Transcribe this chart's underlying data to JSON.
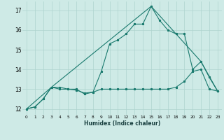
{
  "xlabel": "Humidex (Indice chaleur)",
  "ylabel": "",
  "xlim": [
    -0.5,
    23.5
  ],
  "ylim": [
    11.7,
    17.45
  ],
  "yticks": [
    12,
    13,
    14,
    15,
    16,
    17
  ],
  "xticks": [
    0,
    1,
    2,
    3,
    4,
    5,
    6,
    7,
    8,
    9,
    10,
    11,
    12,
    13,
    14,
    15,
    16,
    17,
    18,
    19,
    20,
    21,
    22,
    23
  ],
  "background_color": "#ceeae6",
  "grid_color": "#aed4cf",
  "line_color": "#1a7a6e",
  "line1_x": [
    0,
    1,
    2,
    3,
    4,
    5,
    6,
    7,
    8,
    9,
    10,
    11,
    12,
    13,
    14,
    15,
    16,
    17,
    18,
    19,
    20,
    21,
    22,
    23
  ],
  "line1_y": [
    12.0,
    12.1,
    12.5,
    13.1,
    13.1,
    13.0,
    12.95,
    12.8,
    12.85,
    13.0,
    13.0,
    13.0,
    13.0,
    13.0,
    13.0,
    13.0,
    13.0,
    13.0,
    13.1,
    13.4,
    13.9,
    14.0,
    13.0,
    12.9
  ],
  "line2_x": [
    0,
    1,
    2,
    3,
    4,
    5,
    6,
    7,
    8,
    9,
    10,
    11,
    12,
    13,
    14,
    15,
    16,
    17,
    18,
    19,
    20,
    21,
    22,
    23
  ],
  "line2_y": [
    12.0,
    12.1,
    12.5,
    13.1,
    13.0,
    13.0,
    13.0,
    12.75,
    12.85,
    13.9,
    15.3,
    15.5,
    15.8,
    16.3,
    16.3,
    17.2,
    16.5,
    16.0,
    15.8,
    15.8,
    14.0,
    14.4,
    13.6,
    12.9
  ],
  "line3_x": [
    0,
    3,
    15,
    18,
    21,
    23
  ],
  "line3_y": [
    12.0,
    13.1,
    17.2,
    15.8,
    14.4,
    12.9
  ]
}
